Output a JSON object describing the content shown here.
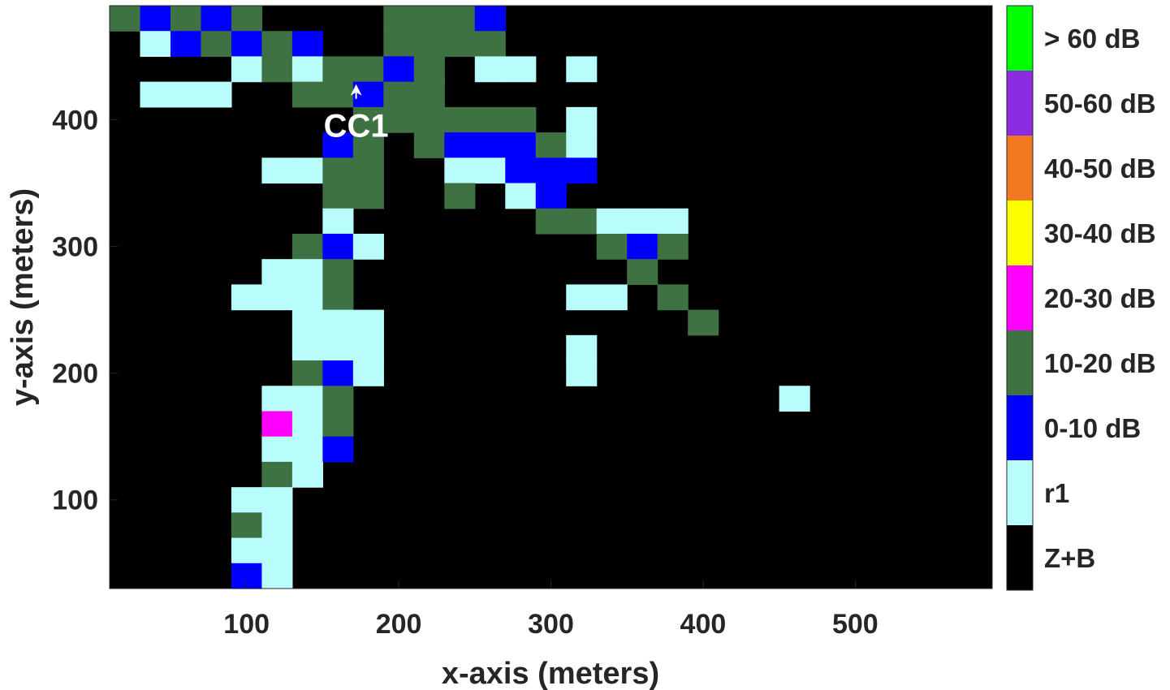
{
  "chart_data": {
    "type": "heatmap",
    "title": "",
    "xlabel": "x-axis (meters)",
    "ylabel": "y-axis (meters)",
    "xlim": [
      10,
      590
    ],
    "ylim": [
      30,
      490
    ],
    "xticks": [
      100,
      200,
      300,
      400,
      500
    ],
    "yticks": [
      100,
      200,
      300,
      400
    ],
    "cell_size": 20,
    "grid": false,
    "background_category": "Z+B",
    "categories": [
      {
        "label": "Z+B",
        "color": "#000000"
      },
      {
        "label": "r1",
        "color": "#b8fcfc"
      },
      {
        "label": "0-10 dB",
        "color": "#0000ff"
      },
      {
        "label": "10-20 dB",
        "color": "#3f7243"
      },
      {
        "label": "20-30 dB",
        "color": "#ff00ff"
      },
      {
        "label": "30-40 dB",
        "color": "#ffff00"
      },
      {
        "label": "40-50 dB",
        "color": "#f07820"
      },
      {
        "label": "50-60 dB",
        "color": "#8a2be2"
      },
      {
        "label": "> 60 dB",
        "color": "#00ff00"
      }
    ],
    "colorbar_labels": [
      "> 60 dB",
      "50-60 dB",
      "40-50 dB",
      "30-40 dB",
      "20-30 dB",
      "10-20 dB",
      "0-10 dB",
      "r1",
      "Z+B"
    ],
    "cells": [
      {
        "x": 20,
        "y": 480,
        "c": "10-20 dB"
      },
      {
        "x": 40,
        "y": 480,
        "c": "0-10 dB"
      },
      {
        "x": 60,
        "y": 480,
        "c": "10-20 dB"
      },
      {
        "x": 80,
        "y": 480,
        "c": "0-10 dB"
      },
      {
        "x": 100,
        "y": 480,
        "c": "10-20 dB"
      },
      {
        "x": 200,
        "y": 480,
        "c": "10-20 dB"
      },
      {
        "x": 220,
        "y": 480,
        "c": "10-20 dB"
      },
      {
        "x": 240,
        "y": 480,
        "c": "10-20 dB"
      },
      {
        "x": 260,
        "y": 480,
        "c": "0-10 dB"
      },
      {
        "x": 40,
        "y": 460,
        "c": "r1"
      },
      {
        "x": 60,
        "y": 460,
        "c": "0-10 dB"
      },
      {
        "x": 80,
        "y": 460,
        "c": "10-20 dB"
      },
      {
        "x": 100,
        "y": 460,
        "c": "0-10 dB"
      },
      {
        "x": 120,
        "y": 460,
        "c": "10-20 dB"
      },
      {
        "x": 140,
        "y": 460,
        "c": "0-10 dB"
      },
      {
        "x": 200,
        "y": 460,
        "c": "10-20 dB"
      },
      {
        "x": 220,
        "y": 460,
        "c": "10-20 dB"
      },
      {
        "x": 240,
        "y": 460,
        "c": "10-20 dB"
      },
      {
        "x": 260,
        "y": 460,
        "c": "10-20 dB"
      },
      {
        "x": 100,
        "y": 440,
        "c": "r1"
      },
      {
        "x": 120,
        "y": 440,
        "c": "10-20 dB"
      },
      {
        "x": 140,
        "y": 440,
        "c": "r1"
      },
      {
        "x": 160,
        "y": 440,
        "c": "10-20 dB"
      },
      {
        "x": 180,
        "y": 440,
        "c": "10-20 dB"
      },
      {
        "x": 200,
        "y": 440,
        "c": "0-10 dB"
      },
      {
        "x": 220,
        "y": 440,
        "c": "10-20 dB"
      },
      {
        "x": 260,
        "y": 440,
        "c": "r1"
      },
      {
        "x": 280,
        "y": 440,
        "c": "r1"
      },
      {
        "x": 320,
        "y": 440,
        "c": "r1"
      },
      {
        "x": 40,
        "y": 420,
        "c": "r1"
      },
      {
        "x": 60,
        "y": 420,
        "c": "r1"
      },
      {
        "x": 80,
        "y": 420,
        "c": "r1"
      },
      {
        "x": 140,
        "y": 420,
        "c": "10-20 dB"
      },
      {
        "x": 160,
        "y": 420,
        "c": "10-20 dB"
      },
      {
        "x": 180,
        "y": 420,
        "c": "0-10 dB"
      },
      {
        "x": 200,
        "y": 420,
        "c": "10-20 dB"
      },
      {
        "x": 220,
        "y": 420,
        "c": "10-20 dB"
      },
      {
        "x": 180,
        "y": 400,
        "c": "10-20 dB"
      },
      {
        "x": 200,
        "y": 400,
        "c": "10-20 dB"
      },
      {
        "x": 220,
        "y": 400,
        "c": "10-20 dB"
      },
      {
        "x": 240,
        "y": 400,
        "c": "10-20 dB"
      },
      {
        "x": 260,
        "y": 400,
        "c": "10-20 dB"
      },
      {
        "x": 280,
        "y": 400,
        "c": "10-20 dB"
      },
      {
        "x": 320,
        "y": 400,
        "c": "r1"
      },
      {
        "x": 160,
        "y": 380,
        "c": "0-10 dB"
      },
      {
        "x": 180,
        "y": 380,
        "c": "10-20 dB"
      },
      {
        "x": 220,
        "y": 380,
        "c": "10-20 dB"
      },
      {
        "x": 240,
        "y": 380,
        "c": "0-10 dB"
      },
      {
        "x": 260,
        "y": 380,
        "c": "0-10 dB"
      },
      {
        "x": 280,
        "y": 380,
        "c": "0-10 dB"
      },
      {
        "x": 300,
        "y": 380,
        "c": "10-20 dB"
      },
      {
        "x": 320,
        "y": 380,
        "c": "r1"
      },
      {
        "x": 120,
        "y": 360,
        "c": "r1"
      },
      {
        "x": 140,
        "y": 360,
        "c": "r1"
      },
      {
        "x": 160,
        "y": 360,
        "c": "10-20 dB"
      },
      {
        "x": 180,
        "y": 360,
        "c": "10-20 dB"
      },
      {
        "x": 240,
        "y": 360,
        "c": "r1"
      },
      {
        "x": 260,
        "y": 360,
        "c": "r1"
      },
      {
        "x": 280,
        "y": 360,
        "c": "0-10 dB"
      },
      {
        "x": 300,
        "y": 360,
        "c": "0-10 dB"
      },
      {
        "x": 320,
        "y": 360,
        "c": "0-10 dB"
      },
      {
        "x": 160,
        "y": 340,
        "c": "10-20 dB"
      },
      {
        "x": 180,
        "y": 340,
        "c": "10-20 dB"
      },
      {
        "x": 240,
        "y": 340,
        "c": "10-20 dB"
      },
      {
        "x": 280,
        "y": 340,
        "c": "r1"
      },
      {
        "x": 300,
        "y": 340,
        "c": "0-10 dB"
      },
      {
        "x": 160,
        "y": 320,
        "c": "r1"
      },
      {
        "x": 300,
        "y": 320,
        "c": "10-20 dB"
      },
      {
        "x": 320,
        "y": 320,
        "c": "10-20 dB"
      },
      {
        "x": 340,
        "y": 320,
        "c": "r1"
      },
      {
        "x": 360,
        "y": 320,
        "c": "r1"
      },
      {
        "x": 380,
        "y": 320,
        "c": "r1"
      },
      {
        "x": 140,
        "y": 300,
        "c": "10-20 dB"
      },
      {
        "x": 160,
        "y": 300,
        "c": "0-10 dB"
      },
      {
        "x": 180,
        "y": 300,
        "c": "r1"
      },
      {
        "x": 340,
        "y": 300,
        "c": "10-20 dB"
      },
      {
        "x": 360,
        "y": 300,
        "c": "0-10 dB"
      },
      {
        "x": 380,
        "y": 300,
        "c": "10-20 dB"
      },
      {
        "x": 120,
        "y": 280,
        "c": "r1"
      },
      {
        "x": 140,
        "y": 280,
        "c": "r1"
      },
      {
        "x": 160,
        "y": 280,
        "c": "10-20 dB"
      },
      {
        "x": 360,
        "y": 280,
        "c": "10-20 dB"
      },
      {
        "x": 100,
        "y": 260,
        "c": "r1"
      },
      {
        "x": 120,
        "y": 260,
        "c": "r1"
      },
      {
        "x": 140,
        "y": 260,
        "c": "r1"
      },
      {
        "x": 160,
        "y": 260,
        "c": "10-20 dB"
      },
      {
        "x": 320,
        "y": 260,
        "c": "r1"
      },
      {
        "x": 340,
        "y": 260,
        "c": "r1"
      },
      {
        "x": 380,
        "y": 260,
        "c": "10-20 dB"
      },
      {
        "x": 140,
        "y": 240,
        "c": "r1"
      },
      {
        "x": 160,
        "y": 240,
        "c": "r1"
      },
      {
        "x": 180,
        "y": 240,
        "c": "r1"
      },
      {
        "x": 400,
        "y": 240,
        "c": "10-20 dB"
      },
      {
        "x": 140,
        "y": 220,
        "c": "r1"
      },
      {
        "x": 160,
        "y": 220,
        "c": "r1"
      },
      {
        "x": 180,
        "y": 220,
        "c": "r1"
      },
      {
        "x": 320,
        "y": 220,
        "c": "r1"
      },
      {
        "x": 140,
        "y": 200,
        "c": "10-20 dB"
      },
      {
        "x": 160,
        "y": 200,
        "c": "0-10 dB"
      },
      {
        "x": 180,
        "y": 200,
        "c": "r1"
      },
      {
        "x": 320,
        "y": 200,
        "c": "r1"
      },
      {
        "x": 120,
        "y": 180,
        "c": "r1"
      },
      {
        "x": 140,
        "y": 180,
        "c": "r1"
      },
      {
        "x": 160,
        "y": 180,
        "c": "10-20 dB"
      },
      {
        "x": 460,
        "y": 180,
        "c": "r1"
      },
      {
        "x": 120,
        "y": 160,
        "c": "20-30 dB"
      },
      {
        "x": 140,
        "y": 160,
        "c": "r1"
      },
      {
        "x": 160,
        "y": 160,
        "c": "10-20 dB"
      },
      {
        "x": 120,
        "y": 140,
        "c": "r1"
      },
      {
        "x": 140,
        "y": 140,
        "c": "r1"
      },
      {
        "x": 160,
        "y": 140,
        "c": "0-10 dB"
      },
      {
        "x": 120,
        "y": 120,
        "c": "10-20 dB"
      },
      {
        "x": 140,
        "y": 120,
        "c": "r1"
      },
      {
        "x": 100,
        "y": 100,
        "c": "r1"
      },
      {
        "x": 120,
        "y": 100,
        "c": "r1"
      },
      {
        "x": 100,
        "y": 80,
        "c": "10-20 dB"
      },
      {
        "x": 120,
        "y": 80,
        "c": "r1"
      },
      {
        "x": 100,
        "y": 60,
        "c": "r1"
      },
      {
        "x": 120,
        "y": 60,
        "c": "r1"
      },
      {
        "x": 100,
        "y": 40,
        "c": "0-10 dB"
      },
      {
        "x": 120,
        "y": 40,
        "c": "r1"
      }
    ],
    "annotations": [
      {
        "text": "CC1",
        "x": 172,
        "y": 407,
        "arrow_to": {
          "x": 172,
          "y": 428
        }
      }
    ]
  }
}
